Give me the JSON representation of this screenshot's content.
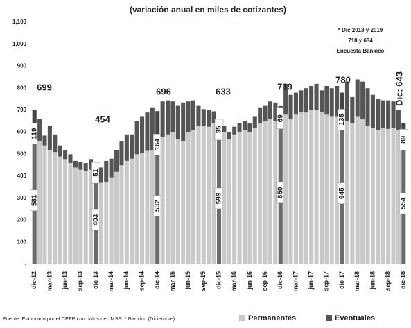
{
  "chart_data": {
    "type": "stacked_bar",
    "title": "(variación anual en miles de cotizantes)",
    "note": [
      "* Dic 2018 y 2019",
      "718 y 634",
      "Encuesta Banxico"
    ],
    "source": "Fuente: Elaborado por el CEFP con datos del IMSS. * Banxico (Diciembre)",
    "annotations": [
      "699",
      "454",
      "696",
      "633",
      "719",
      "780",
      "Dic: 643"
    ],
    "categories": [
      "dic-12",
      null,
      null,
      "mar-13",
      null,
      null,
      "jun-13",
      null,
      null,
      "sep-13",
      null,
      null,
      "dic-13",
      null,
      null,
      "mar-14",
      null,
      null,
      "jun-14",
      null,
      null,
      "sep-14",
      null,
      null,
      "dic-14",
      null,
      null,
      "mar-15",
      null,
      null,
      "jun-15",
      null,
      null,
      "sep-15",
      null,
      null,
      "dic-15",
      null,
      null,
      "mar-16",
      null,
      null,
      "jun-16",
      null,
      null,
      "sep-16",
      null,
      null,
      "dic-16",
      null,
      null,
      "mar-17",
      null,
      null,
      "jun-17",
      null,
      null,
      "sep-17",
      null,
      null,
      "dic-17",
      null,
      null,
      "mar-18",
      null,
      null,
      "jun-18",
      null,
      null,
      "sep-18",
      null,
      null,
      "dic-18"
    ],
    "series": [
      {
        "name": "Permanentes",
        "color": "#c9c9c9",
        "highlight_color": "#6b6b6b",
        "values": [
          581,
          560,
          540,
          520,
          510,
          490,
          475,
          460,
          440,
          430,
          425,
          430,
          403,
          370,
          375,
          395,
          420,
          450,
          470,
          480,
          500,
          505,
          515,
          520,
          532,
          580,
          590,
          600,
          570,
          560,
          600,
          610,
          630,
          630,
          625,
          640,
          599,
          600,
          570,
          590,
          600,
          610,
          600,
          620,
          640,
          650,
          660,
          650,
          650,
          680,
          660,
          680,
          690,
          690,
          700,
          700,
          690,
          680,
          670,
          670,
          645,
          650,
          640,
          670,
          660,
          630,
          620,
          610,
          620,
          615,
          620,
          610,
          554
        ]
      },
      {
        "name": "Eventuales",
        "color": "#555555",
        "highlight_color": "#444444",
        "values": [
          119,
          100,
          45,
          110,
          80,
          50,
          45,
          40,
          30,
          35,
          35,
          45,
          51,
          70,
          95,
          85,
          100,
          110,
          120,
          110,
          150,
          165,
          175,
          190,
          164,
          160,
          155,
          140,
          150,
          175,
          140,
          135,
          90,
          75,
          75,
          55,
          35,
          30,
          30,
          35,
          40,
          40,
          40,
          50,
          70,
          70,
          80,
          85,
          69,
          140,
          110,
          100,
          100,
          110,
          110,
          120,
          100,
          130,
          130,
          140,
          135,
          180,
          120,
          170,
          170,
          170,
          150,
          140,
          125,
          130,
          120,
          90,
          89
        ]
      }
    ],
    "highlight": [
      0,
      12,
      24,
      36,
      48,
      60,
      72
    ],
    "ylim": [
      0,
      1100
    ],
    "yticks": [
      {
        "value": 0,
        "label": "-"
      },
      100,
      200,
      300,
      400,
      500,
      600,
      700,
      800,
      900,
      {
        "value": 1000,
        "label": "1,000"
      },
      {
        "value": 1100,
        "label": "1,100"
      }
    ]
  }
}
